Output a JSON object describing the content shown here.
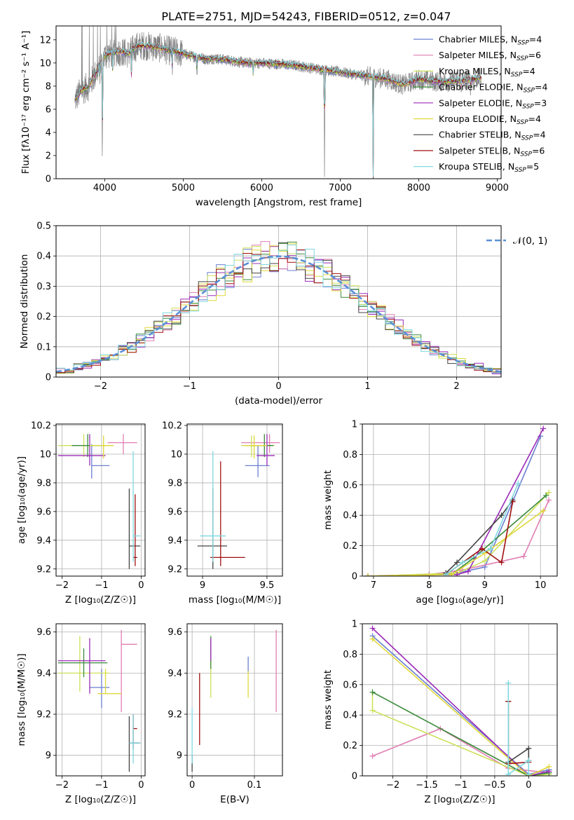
{
  "title": "PLATE=2751, MJD=54243, FIBERID=0512, z=0.047",
  "models": [
    {
      "name": "Chabrier MILES",
      "nssp": "4",
      "color": "#6b7fd0"
    },
    {
      "name": "Salpeter MILES",
      "nssp": "6",
      "color": "#e07fb3"
    },
    {
      "name": "Kroupa MILES",
      "nssp": "4",
      "color": "#cde05a"
    },
    {
      "name": "Chabrier ELODIE",
      "nssp": "4",
      "color": "#3a8a3a"
    },
    {
      "name": "Salpeter ELODIE",
      "nssp": "3",
      "color": "#9b2cb8"
    },
    {
      "name": "Kroupa ELODIE",
      "nssp": "4",
      "color": "#e0d83a"
    },
    {
      "name": "Chabrier STELIB",
      "nssp": "4",
      "color": "#444444"
    },
    {
      "name": "Salpeter STELIB",
      "nssp": "6",
      "color": "#a01010"
    },
    {
      "name": "Kroupa STELIB",
      "nssp": "5",
      "color": "#7fd8e0"
    }
  ],
  "chart_data": [
    {
      "id": "spectrum",
      "type": "line",
      "xlabel": "wavelength [Angstrom, rest frame]",
      "ylabel": "Flux [fλ10⁻¹⁷ erg cm⁻² s⁻¹ A⁻¹]",
      "xlim": [
        3380,
        9050
      ],
      "ylim": [
        0,
        13.2
      ],
      "xticks": [
        4000,
        5000,
        6000,
        7000,
        8000,
        9000
      ],
      "yticks": [
        0,
        2,
        4,
        6,
        8,
        10,
        12
      ],
      "legend_placement": "right",
      "data_color": "#808080",
      "continuum": [
        [
          3620,
          6.8
        ],
        [
          3700,
          7.6
        ],
        [
          3800,
          8.0
        ],
        [
          3900,
          9.3
        ],
        [
          4000,
          10.6
        ],
        [
          4100,
          10.9
        ],
        [
          4200,
          11.0
        ],
        [
          4300,
          10.8
        ],
        [
          4400,
          11.4
        ],
        [
          4500,
          11.5
        ],
        [
          4600,
          11.4
        ],
        [
          4700,
          11.3
        ],
        [
          4800,
          11.1
        ],
        [
          4900,
          11.0
        ],
        [
          5000,
          10.8
        ],
        [
          5100,
          10.6
        ],
        [
          5200,
          10.5
        ],
        [
          5300,
          10.3
        ],
        [
          5400,
          10.4
        ],
        [
          5500,
          10.3
        ],
        [
          5600,
          10.2
        ],
        [
          5700,
          10.1
        ],
        [
          5800,
          10.0
        ],
        [
          6000,
          10.0
        ],
        [
          6200,
          9.9
        ],
        [
          6400,
          9.8
        ],
        [
          6600,
          9.6
        ],
        [
          6800,
          9.4
        ],
        [
          7000,
          9.2
        ],
        [
          7200,
          9.0
        ],
        [
          7400,
          8.8
        ],
        [
          7600,
          8.6
        ],
        [
          7800,
          8.1
        ],
        [
          8000,
          8.6
        ],
        [
          8200,
          8.4
        ],
        [
          8400,
          8.4
        ],
        [
          8600,
          8.5
        ],
        [
          8800,
          8.7
        ]
      ],
      "absorption_lines": [
        [
          3934,
          8.5
        ],
        [
          3969,
          0
        ],
        [
          4102,
          8.6
        ],
        [
          4340,
          9.0
        ],
        [
          4861,
          9.5
        ],
        [
          5175,
          8.8
        ],
        [
          5892,
          9.0
        ],
        [
          6563,
          9.6
        ],
        [
          6800,
          0
        ],
        [
          7420,
          0
        ],
        [
          8542,
          7.9
        ],
        [
          8662,
          7.8
        ]
      ]
    },
    {
      "id": "residuals",
      "type": "histogram",
      "xlabel": "(data-model)/error",
      "ylabel": "Normed distribution",
      "xlim": [
        -2.5,
        2.5
      ],
      "ylim": [
        0,
        0.5
      ],
      "xticks": [
        -2,
        -1,
        0,
        1,
        2
      ],
      "yticks": [
        0.0,
        0.1,
        0.2,
        0.3,
        0.4,
        0.5
      ],
      "grid": true,
      "bin_width": 0.1,
      "legend": "𝒩(0, 1)",
      "legend_placement": "top-right",
      "normal_color": "#5b8fd6"
    },
    {
      "id": "age_vs_Z",
      "type": "scatter",
      "xlabel": "Z [log₁₀(Z/Z☉)]",
      "ylabel": "age  [log₁₀(age/yr)]",
      "xlim": [
        -2.15,
        0.1
      ],
      "ylim": [
        9.15,
        10.21
      ],
      "xticks": [
        -2,
        -1,
        0
      ],
      "yticks": [
        9.2,
        9.4,
        9.6,
        9.8,
        10.0,
        10.2
      ],
      "grid": true,
      "points": [
        {
          "m": 0,
          "x": -1.25,
          "y": 9.92,
          "xlo": -1.25,
          "xhi": -0.8,
          "ylo": 9.83,
          "yhi": 10.07
        },
        {
          "m": 1,
          "x": -0.45,
          "y": 10.08,
          "xlo": -0.85,
          "xhi": -0.1,
          "ylo": 10.0,
          "yhi": 10.14
        },
        {
          "m": 2,
          "x": -1.45,
          "y": 10.06,
          "xlo": -2.1,
          "xhi": -0.7,
          "ylo": 9.98,
          "yhi": 10.14
        },
        {
          "m": 3,
          "x": -1.35,
          "y": 10.06,
          "xlo": -1.75,
          "xhi": -0.9,
          "ylo": 9.98,
          "yhi": 10.14
        },
        {
          "m": 4,
          "x": -1.3,
          "y": 9.99,
          "xlo": -2.1,
          "xhi": -0.9,
          "ylo": 9.92,
          "yhi": 10.14
        },
        {
          "m": 5,
          "x": -0.95,
          "y": 10.06,
          "xlo": -1.3,
          "xhi": -0.7,
          "ylo": 9.97,
          "yhi": 10.13
        },
        {
          "m": 6,
          "x": -0.3,
          "y": 9.36,
          "xlo": -0.3,
          "xhi": -0.02,
          "ylo": 9.2,
          "yhi": 9.76
        },
        {
          "m": 7,
          "x": -0.15,
          "y": 9.28,
          "xlo": -0.2,
          "xhi": -0.1,
          "ylo": 9.22,
          "yhi": 9.72
        },
        {
          "m": 8,
          "x": -0.2,
          "y": 9.43,
          "xlo": -0.2,
          "xhi": -0.02,
          "ylo": 9.25,
          "yhi": 10.02
        }
      ]
    },
    {
      "id": "age_vs_mass",
      "type": "scatter",
      "xlabel": "mass [log₁₀(M/M☉)]",
      "ylabel": "",
      "xlim": [
        8.88,
        9.62
      ],
      "ylim": [
        9.15,
        10.21
      ],
      "xticks": [
        9.0,
        9.5
      ],
      "yticks": [
        9.2,
        9.4,
        9.6,
        9.8,
        10.0,
        10.2
      ],
      "grid": true,
      "points": [
        {
          "m": 0,
          "x": 9.43,
          "y": 9.92,
          "xlo": 9.33,
          "xhi": 9.52,
          "ylo": 9.84,
          "yhi": 10.06
        },
        {
          "m": 1,
          "x": 9.52,
          "y": 10.08,
          "xlo": 9.3,
          "xhi": 9.6,
          "ylo": 10.01,
          "yhi": 10.14
        },
        {
          "m": 2,
          "x": 9.38,
          "y": 10.06,
          "xlo": 9.3,
          "xhi": 9.56,
          "ylo": 9.98,
          "yhi": 10.13
        },
        {
          "m": 3,
          "x": 9.48,
          "y": 10.06,
          "xlo": 9.36,
          "xhi": 9.55,
          "ylo": 9.98,
          "yhi": 10.14
        },
        {
          "m": 4,
          "x": 9.5,
          "y": 9.99,
          "xlo": 9.42,
          "xhi": 9.56,
          "ylo": 9.92,
          "yhi": 10.14
        },
        {
          "m": 5,
          "x": 9.4,
          "y": 10.06,
          "xlo": 9.32,
          "xhi": 9.5,
          "ylo": 9.97,
          "yhi": 10.13
        },
        {
          "m": 6,
          "x": 9.08,
          "y": 9.36,
          "xlo": 8.96,
          "xhi": 9.19,
          "ylo": 9.2,
          "yhi": 9.76
        },
        {
          "m": 7,
          "x": 9.14,
          "y": 9.28,
          "xlo": 9.06,
          "xhi": 9.33,
          "ylo": 9.22,
          "yhi": 9.95
        },
        {
          "m": 8,
          "x": 9.08,
          "y": 9.43,
          "xlo": 8.98,
          "xhi": 9.18,
          "ylo": 9.25,
          "yhi": 10.02
        }
      ]
    },
    {
      "id": "mass_weight_vs_age",
      "type": "line",
      "xlabel": "age  [log₁₀(age/yr)]",
      "ylabel": "mass weight",
      "xlim": [
        6.8,
        10.3
      ],
      "ylim": [
        0,
        1.0
      ],
      "xticks": [
        7,
        8,
        9,
        10
      ],
      "yticks": [
        0.0,
        0.2,
        0.4,
        0.6,
        0.8,
        1.0
      ],
      "grid": true,
      "series": [
        {
          "m": 0,
          "x": [
            6.9,
            8.0,
            8.5,
            9.0,
            10.0
          ],
          "y": [
            0.0,
            0.01,
            0.02,
            0.06,
            0.92
          ]
        },
        {
          "m": 1,
          "x": [
            6.9,
            8.0,
            8.6,
            9.7,
            10.15
          ],
          "y": [
            0.0,
            0.01,
            0.04,
            0.13,
            0.5
          ]
        },
        {
          "m": 2,
          "x": [
            6.9,
            8.5,
            9.0,
            10.15
          ],
          "y": [
            0.0,
            0.02,
            0.1,
            0.55
          ]
        },
        {
          "m": 3,
          "x": [
            6.9,
            8.4,
            8.8,
            10.1
          ],
          "y": [
            0.0,
            0.01,
            0.12,
            0.53
          ]
        },
        {
          "m": 4,
          "x": [
            6.9,
            8.5,
            8.7,
            10.05
          ],
          "y": [
            0.0,
            0.01,
            0.03,
            0.97
          ]
        },
        {
          "m": 5,
          "x": [
            6.9,
            8.4,
            9.0,
            10.05
          ],
          "y": [
            0.0,
            0.01,
            0.15,
            0.43
          ]
        },
        {
          "m": 6,
          "x": [
            8.3,
            8.5,
            9.3,
            9.5
          ],
          "y": [
            0.02,
            0.09,
            0.4,
            0.5
          ]
        },
        {
          "m": 7,
          "x": [
            8.3,
            8.95,
            9.3,
            9.5
          ],
          "y": [
            0.01,
            0.18,
            0.09,
            0.49
          ]
        },
        {
          "m": 8,
          "x": [
            8.3,
            8.6,
            9.1,
            9.6
          ],
          "y": [
            0.01,
            0.09,
            0.18,
            0.61
          ]
        }
      ]
    },
    {
      "id": "mass_vs_Z",
      "type": "scatter",
      "xlabel": "Z [log₁₀(Z/Z☉)]",
      "ylabel": "mass [log₁₀(M/M☉)]",
      "xlim": [
        -2.15,
        0.1
      ],
      "ylim": [
        8.9,
        9.64
      ],
      "xticks": [
        -2,
        -1,
        0
      ],
      "yticks": [
        9.0,
        9.2,
        9.4,
        9.6
      ],
      "grid": true,
      "points": [
        {
          "m": 0,
          "x": -1.0,
          "y": 9.33,
          "xlo": -1.3,
          "xhi": -0.8,
          "ylo": 9.23,
          "yhi": 9.42
        },
        {
          "m": 1,
          "x": -0.5,
          "y": 9.54,
          "xlo": -0.5,
          "xhi": -0.1,
          "ylo": 9.21,
          "yhi": 9.61
        },
        {
          "m": 2,
          "x": -1.55,
          "y": 9.4,
          "xlo": -2.1,
          "xhi": -0.8,
          "ylo": 9.31,
          "yhi": 9.58
        },
        {
          "m": 3,
          "x": -1.45,
          "y": 9.45,
          "xlo": -2.1,
          "xhi": -0.85,
          "ylo": 9.38,
          "yhi": 9.52
        },
        {
          "m": 4,
          "x": -1.3,
          "y": 9.46,
          "xlo": -2.1,
          "xhi": -0.9,
          "ylo": 9.3,
          "yhi": 9.57
        },
        {
          "m": 5,
          "x": -0.9,
          "y": 9.3,
          "xlo": -1.1,
          "xhi": -0.5,
          "ylo": 9.3,
          "yhi": 9.42
        },
        {
          "m": 6,
          "x": -0.3,
          "y": 9.06,
          "xlo": -0.3,
          "xhi": -0.02,
          "ylo": 8.92,
          "yhi": 9.19
        },
        {
          "m": 7,
          "x": -0.2,
          "y": 9.13,
          "xlo": -0.2,
          "xhi": -0.1,
          "ylo": 9.03,
          "yhi": 9.2
        },
        {
          "m": 8,
          "x": -0.2,
          "y": 9.06,
          "xlo": -0.3,
          "xhi": -0.02,
          "ylo": 8.96,
          "yhi": 9.2
        }
      ]
    },
    {
      "id": "mass_vs_ebv",
      "type": "scatter",
      "xlabel": "E(B-V)",
      "ylabel": "",
      "xlim": [
        -0.008,
        0.145
      ],
      "ylim": [
        8.9,
        9.64
      ],
      "xticks": [
        0.0,
        0.1
      ],
      "yticks": [
        9.0,
        9.2,
        9.4,
        9.6
      ],
      "grid": true,
      "points": [
        {
          "m": 0,
          "x": 0.09,
          "y": 9.44,
          "ylo": 9.4,
          "yhi": 9.48
        },
        {
          "m": 1,
          "x": 0.135,
          "y": 9.41,
          "ylo": 9.21,
          "yhi": 9.61
        },
        {
          "m": 2,
          "x": 0.03,
          "y": 9.4,
          "ylo": 9.28,
          "yhi": 9.52
        },
        {
          "m": 3,
          "x": 0.03,
          "y": 9.45,
          "ylo": 9.42,
          "yhi": 9.58
        },
        {
          "m": 4,
          "x": 0.03,
          "y": 9.5,
          "ylo": 9.46,
          "yhi": 9.57
        },
        {
          "m": 5,
          "x": 0.09,
          "y": 9.33,
          "ylo": 9.28,
          "yhi": 9.41
        },
        {
          "m": 6,
          "x": 0.0,
          "y": 8.96,
          "ylo": 8.92,
          "yhi": 9.0
        },
        {
          "m": 7,
          "x": 0.012,
          "y": 9.23,
          "ylo": 9.05,
          "yhi": 9.4
        },
        {
          "m": 8,
          "x": 0.0,
          "y": 9.1,
          "ylo": 8.96,
          "yhi": 9.23
        }
      ]
    },
    {
      "id": "mass_weight_vs_Z",
      "type": "line",
      "xlabel": "Z [log₁₀(Z/Z☉)]",
      "ylabel": "mass weight",
      "xlim": [
        -2.45,
        0.42
      ],
      "ylim": [
        0,
        1.0
      ],
      "xticks": [
        -2.0,
        -1.5,
        -1.0,
        -0.5,
        0.0
      ],
      "yticks": [
        0.0,
        0.2,
        0.4,
        0.6,
        0.8,
        1.0
      ],
      "grid": true,
      "series": [
        {
          "m": 0,
          "x": [
            -2.3,
            0.0,
            0.3
          ],
          "y": [
            0.92,
            0.01,
            0.04
          ]
        },
        {
          "m": 1,
          "x": [
            -2.3,
            -1.3,
            -0.3,
            0.3
          ],
          "y": [
            0.13,
            0.31,
            0.05,
            0.02
          ]
        },
        {
          "m": 2,
          "x": [
            -2.3,
            -2.3,
            0.0,
            0.3
          ],
          "y": [
            0.55,
            0.43,
            0.0,
            0.01
          ]
        },
        {
          "m": 3,
          "x": [
            -2.3,
            0.0,
            0.3
          ],
          "y": [
            0.55,
            0.0,
            0.02
          ]
        },
        {
          "m": 4,
          "x": [
            -2.3,
            0.0,
            0.3
          ],
          "y": [
            0.97,
            0.0,
            0.03
          ]
        },
        {
          "m": 5,
          "x": [
            -2.3,
            0.0,
            0.3
          ],
          "y": [
            0.9,
            0.0,
            0.06
          ]
        },
        {
          "m": 6,
          "x": [
            -0.3,
            -0.3,
            0.0,
            0.0
          ],
          "y": [
            0.49,
            0.09,
            0.18,
            0.1
          ]
        },
        {
          "m": 7,
          "x": [
            -0.3,
            -0.3,
            0.0
          ],
          "y": [
            0.49,
            0.08,
            0.09
          ]
        },
        {
          "m": 8,
          "x": [
            -0.3,
            -0.3,
            0.0,
            0.0
          ],
          "y": [
            0.61,
            0.01,
            0.1,
            0.01
          ]
        }
      ]
    }
  ]
}
